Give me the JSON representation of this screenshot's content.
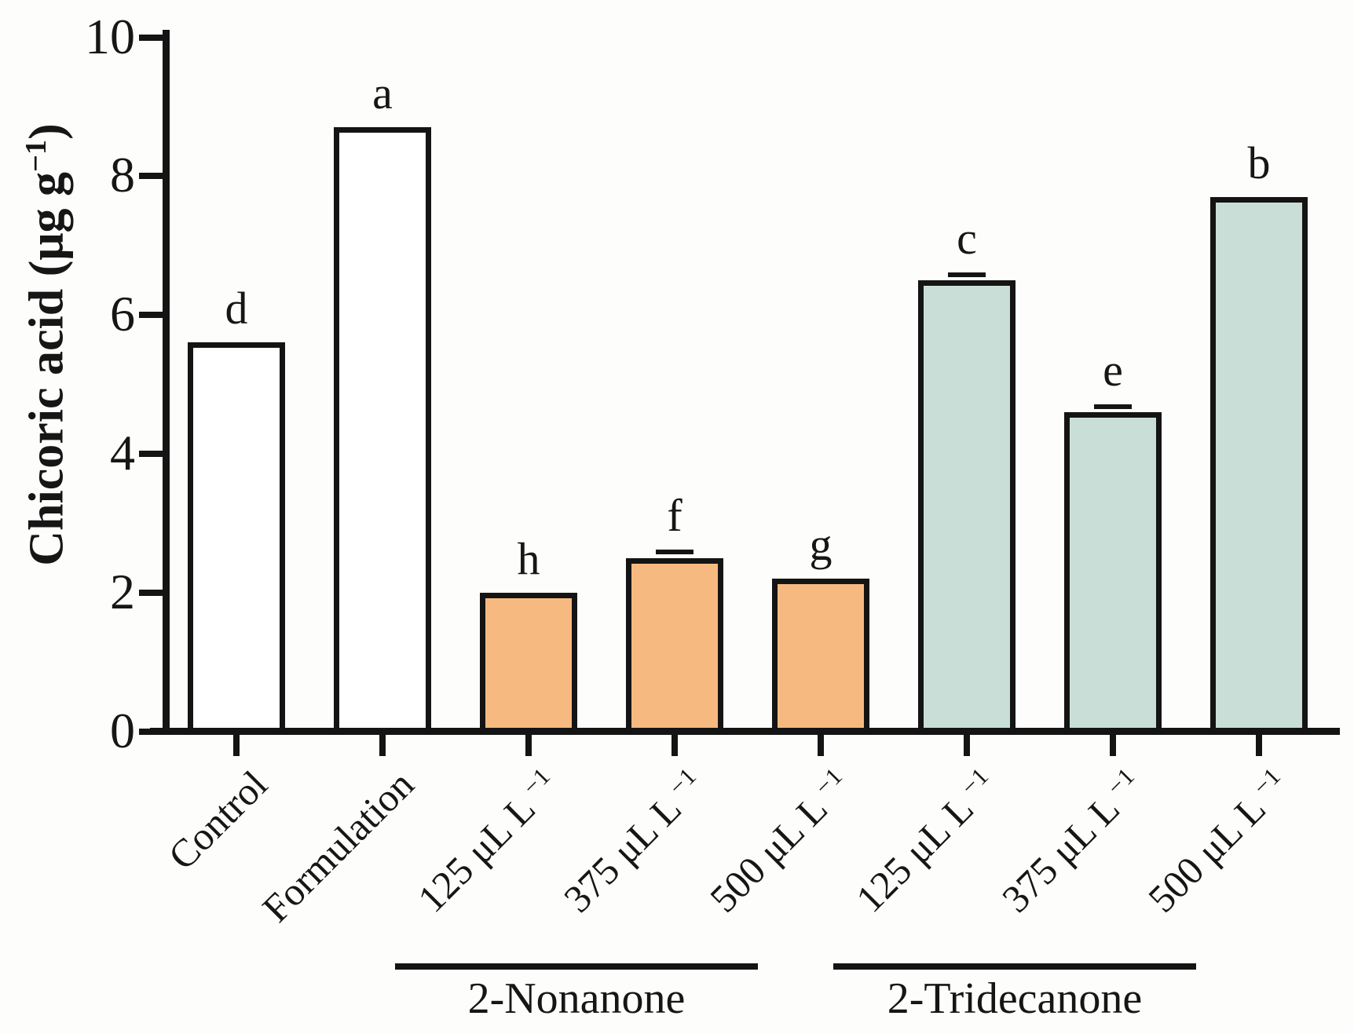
{
  "figure": {
    "background": "#fdfdfb",
    "ylabel_text": "Chicoric acid (μg g",
    "ylabel_sup": "−1",
    "ylabel_close": ")"
  },
  "chart_data": {
    "type": "bar",
    "title": "",
    "xlabel": "",
    "ylabel": "Chicoric acid (μg g−1)",
    "ylim": [
      0,
      10
    ],
    "yticks": [
      0,
      2,
      4,
      6,
      8,
      10
    ],
    "grid": false,
    "legend_position": "none",
    "bars": [
      {
        "category": "Control",
        "category_sup": "",
        "value": 5.6,
        "letter": "d",
        "fill": "#ffffff",
        "error": 0
      },
      {
        "category": "Formulation",
        "category_sup": "",
        "value": 8.7,
        "letter": "a",
        "fill": "#ffffff",
        "error": 0
      },
      {
        "category": "125 μL L",
        "category_sup": "−1",
        "value": 2.0,
        "letter": "h",
        "fill": "#f6ba80",
        "error": 0
      },
      {
        "category": "375 μL L",
        "category_sup": "−1",
        "value": 2.5,
        "letter": "f",
        "fill": "#f6ba80",
        "error": 0.08
      },
      {
        "category": "500 μL L",
        "category_sup": "−1",
        "value": 2.2,
        "letter": "g",
        "fill": "#f6ba80",
        "error": 0
      },
      {
        "category": "125 μL L",
        "category_sup": "−1",
        "value": 6.5,
        "letter": "c",
        "fill": "#c9ded6",
        "error": 0.08
      },
      {
        "category": "375 μL L",
        "category_sup": "−1",
        "value": 4.6,
        "letter": "e",
        "fill": "#c9ded6",
        "error": 0.08
      },
      {
        "category": "500 μL L",
        "category_sup": "−1",
        "value": 7.7,
        "letter": "b",
        "fill": "#c9ded6",
        "error": 0
      }
    ],
    "groups": [
      {
        "label": "2-Nonanone",
        "from": 2,
        "to": 4
      },
      {
        "label": "2-Tridecanone",
        "from": 5,
        "to": 7
      }
    ],
    "colors": {
      "axis": "#141414",
      "control_fill": "#ffffff",
      "nonanone_fill": "#f6ba80",
      "tridecanone_fill": "#c9ded6"
    }
  }
}
